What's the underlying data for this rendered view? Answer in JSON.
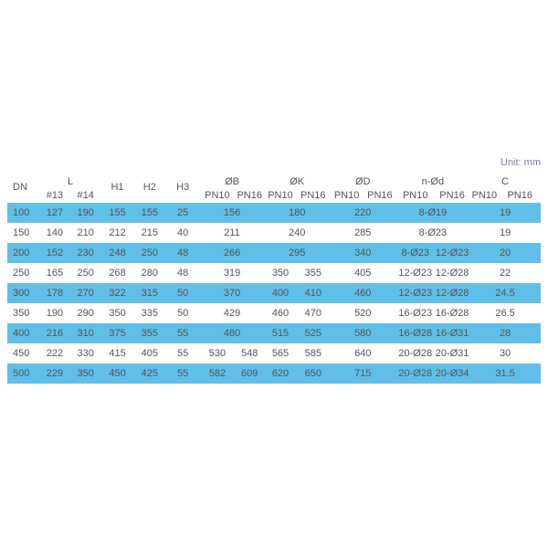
{
  "unit_label": "Unit: mm",
  "colors": {
    "row_highlight": "#5fbfe8",
    "text": "#555555",
    "unit_text": "#8a77b8"
  },
  "header": {
    "dn": "DN",
    "l": "L",
    "l13": "#13",
    "l14": "#14",
    "h1": "H1",
    "h2": "H2",
    "h3": "H3",
    "b": "ØB",
    "k": "ØK",
    "d": "ØD",
    "nd": "n-Ød",
    "c": "C",
    "pn10": "PN10",
    "pn16": "PN16"
  },
  "rows": [
    {
      "dn": "100",
      "l13": "127",
      "l14": "190",
      "h1": "155",
      "h2": "155",
      "h3": "25",
      "b": [
        "156"
      ],
      "k": [
        "180"
      ],
      "d": "220",
      "nd": [
        "8-Ø19"
      ],
      "c": "19"
    },
    {
      "dn": "150",
      "l13": "140",
      "l14": "210",
      "h1": "212",
      "h2": "215",
      "h3": "40",
      "b": [
        "211"
      ],
      "k": [
        "240"
      ],
      "d": "285",
      "nd": [
        "8-Ø23"
      ],
      "c": "19"
    },
    {
      "dn": "200",
      "l13": "152",
      "l14": "230",
      "h1": "248",
      "h2": "250",
      "h3": "48",
      "b": [
        "266"
      ],
      "k": [
        "295"
      ],
      "d": "340",
      "nd": [
        "8-Ø23",
        "12-Ø23"
      ],
      "c": "20"
    },
    {
      "dn": "250",
      "l13": "165",
      "l14": "250",
      "h1": "268",
      "h2": "280",
      "h3": "48",
      "b": [
        "319"
      ],
      "k": [
        "350",
        "355"
      ],
      "d": "405",
      "nd": [
        "12-Ø23",
        "12-Ø28"
      ],
      "c": "22"
    },
    {
      "dn": "300",
      "l13": "178",
      "l14": "270",
      "h1": "322",
      "h2": "315",
      "h3": "50",
      "b": [
        "370"
      ],
      "k": [
        "400",
        "410"
      ],
      "d": "460",
      "nd": [
        "12-Ø23",
        "12-Ø28"
      ],
      "c": "24.5"
    },
    {
      "dn": "350",
      "l13": "190",
      "l14": "290",
      "h1": "350",
      "h2": "335",
      "h3": "50",
      "b": [
        "429"
      ],
      "k": [
        "460",
        "470"
      ],
      "d": "520",
      "nd": [
        "16-Ø23",
        "16-Ø28"
      ],
      "c": "26.5"
    },
    {
      "dn": "400",
      "l13": "216",
      "l14": "310",
      "h1": "375",
      "h2": "355",
      "h3": "55",
      "b": [
        "480"
      ],
      "k": [
        "515",
        "525"
      ],
      "d": "580",
      "nd": [
        "16-Ø28",
        "16-Ø31"
      ],
      "c": "28"
    },
    {
      "dn": "450",
      "l13": "222",
      "l14": "330",
      "h1": "415",
      "h2": "405",
      "h3": "55",
      "b": [
        "530",
        "548"
      ],
      "k": [
        "565",
        "585"
      ],
      "d": "640",
      "nd": [
        "20-Ø28",
        "20-Ø31"
      ],
      "c": "30"
    },
    {
      "dn": "500",
      "l13": "229",
      "l14": "350",
      "h1": "450",
      "h2": "425",
      "h3": "55",
      "b": [
        "582",
        "609"
      ],
      "k": [
        "620",
        "650"
      ],
      "d": "715",
      "nd": [
        "20-Ø28",
        "20-Ø34"
      ],
      "c": "31.5"
    }
  ]
}
